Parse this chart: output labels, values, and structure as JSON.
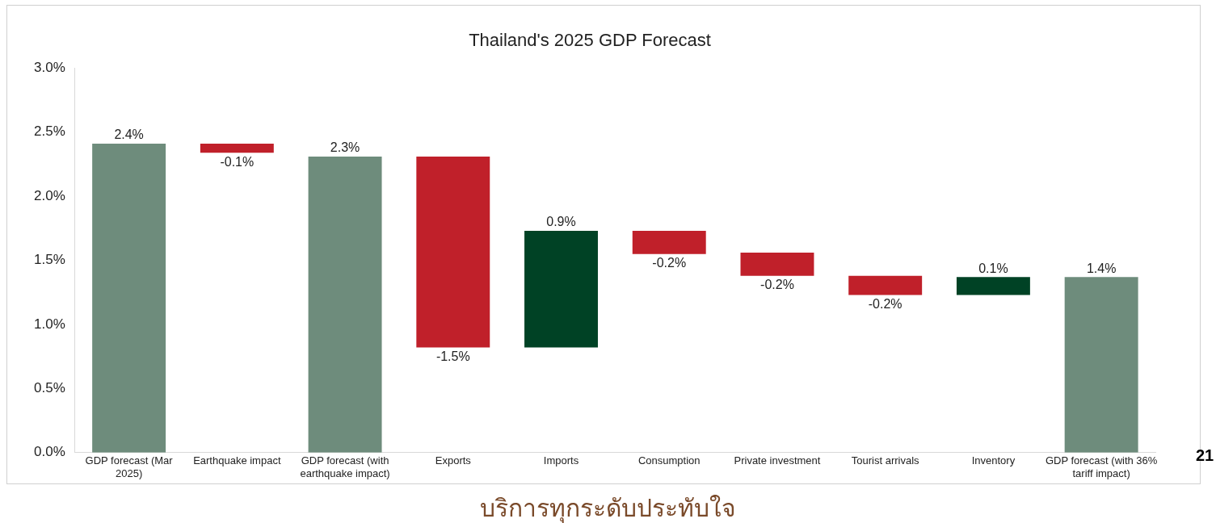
{
  "chart_data": {
    "type": "bar",
    "title": "Thailand's 2025 GDP Forecast",
    "categories": [
      "GDP forecast (Mar 2025)",
      "Earthquake impact",
      "GDP forecast (with earthquake impact)",
      "Exports",
      "Imports",
      "Consumption",
      "Private investment",
      "Tourist arrivals",
      "Inventory",
      "GDP forecast (with 36% tariff impact)"
    ],
    "values": [
      2.41,
      -0.07,
      2.31,
      -1.49,
      0.91,
      -0.18,
      -0.18,
      -0.15,
      0.14,
      1.37
    ],
    "base": [
      0,
      2.41,
      0,
      2.31,
      0.82,
      1.73,
      1.56,
      1.38,
      1.23,
      0
    ],
    "colors": [
      "#6e8c7c",
      "#c0202a",
      "#6e8c7c",
      "#c0202a",
      "#004225",
      "#c0202a",
      "#c0202a",
      "#c0202a",
      "#004225",
      "#6e8c7c"
    ],
    "value_labels": [
      "2.4%",
      "-0.1%",
      "2.3%",
      "-1.5%",
      "0.9%",
      "-0.2%",
      "-0.2%",
      "-0.2%",
      "0.1%",
      "1.4%"
    ],
    "ylim": [
      0,
      3
    ],
    "yticks": [
      {
        "value": 0,
        "label": "0.0%"
      },
      {
        "value": 0.5,
        "label": "0.5%"
      },
      {
        "value": 1,
        "label": "1.0%"
      },
      {
        "value": 1.5,
        "label": "1.5%"
      },
      {
        "value": 2,
        "label": "2.0%"
      },
      {
        "value": 2.5,
        "label": "2.5%"
      },
      {
        "value": 3,
        "label": "3.0%"
      }
    ],
    "grid": false,
    "legend": false,
    "annotations": [
      "21",
      "บริการทุกระดับประทับใจ"
    ]
  }
}
